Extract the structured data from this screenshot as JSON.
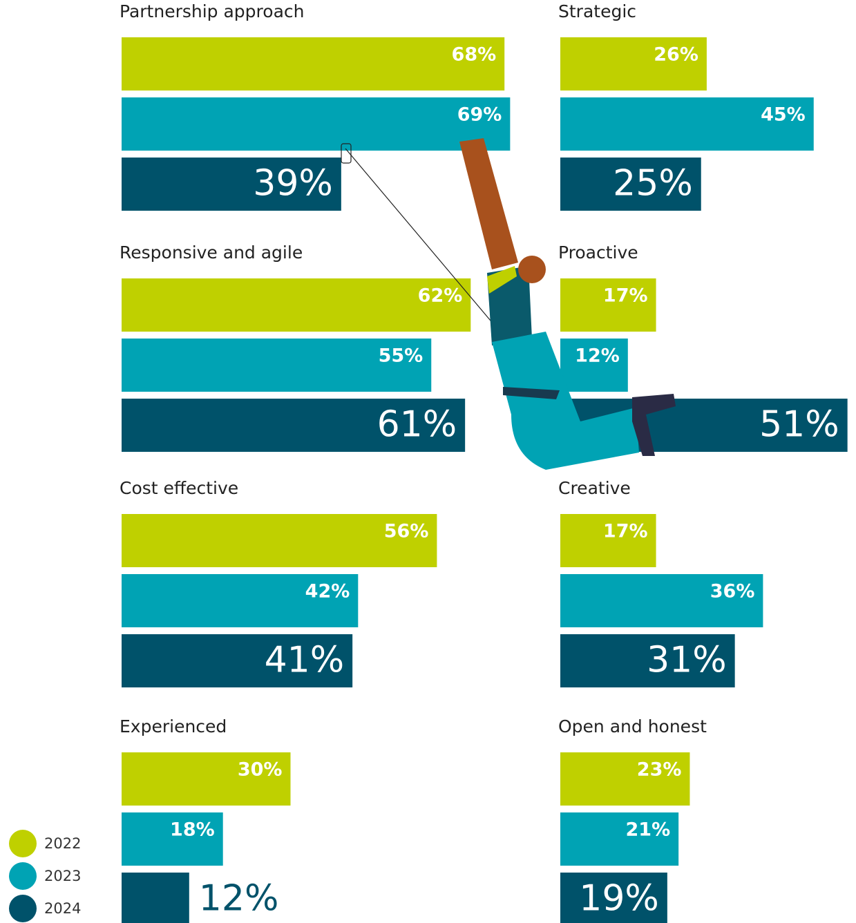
{
  "chart_data": {
    "type": "bar",
    "categories": [
      "Partnership approach",
      "Strategic",
      "Responsive and agile",
      "Proactive",
      "Cost effective",
      "Creative",
      "Experienced",
      "Open and honest"
    ],
    "series": [
      {
        "name": "2022",
        "color": "#bfd000",
        "values": [
          68,
          26,
          62,
          17,
          56,
          17,
          30,
          23
        ],
        "value_labels": [
          "68%",
          "26%",
          "62%",
          "17%",
          "56%",
          "17%",
          "30%",
          "23%"
        ]
      },
      {
        "name": "2023",
        "color": "#00a3b4",
        "values": [
          69,
          45,
          55,
          12,
          42,
          36,
          18,
          21
        ],
        "value_labels": [
          "69%",
          "45%",
          "55%",
          "12%",
          "42%",
          "36%",
          "18%",
          "21%"
        ]
      },
      {
        "name": "2024",
        "color": "#00526a",
        "values": [
          39,
          25,
          61,
          51,
          41,
          31,
          12,
          19
        ],
        "value_labels": [
          "39%",
          "25%",
          "61%",
          "51%",
          "41%",
          "31%",
          "12%",
          "19%"
        ]
      }
    ],
    "legend": "bottom-left"
  }
}
